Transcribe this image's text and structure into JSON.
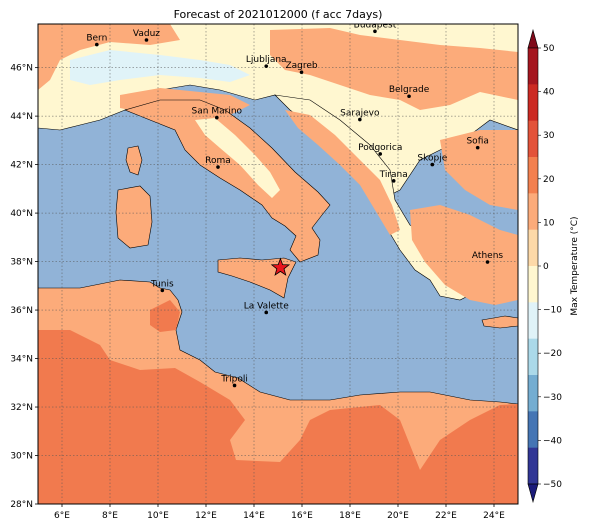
{
  "title": "Forecast of 2021012000 (f acc 7days)",
  "colorbar": {
    "label": "Max Temperature (°C)",
    "ticks": [
      "50",
      "40",
      "30",
      "20",
      "10",
      "0",
      "−10",
      "−20",
      "−30",
      "−40",
      "−50"
    ],
    "colors": [
      "#7f0a1a",
      "#a5161f",
      "#cc2a23",
      "#e3533a",
      "#f3804f",
      "#fcab7a",
      "#fdd9a8",
      "#fff7d0",
      "#e0f3f8",
      "#abd9e9",
      "#74add1",
      "#4575b4",
      "#313695",
      "#1b1b7a"
    ]
  },
  "axes": {
    "lat_labels": [
      "46°N",
      "44°N",
      "42°N",
      "40°N",
      "38°N",
      "36°N",
      "34°N",
      "32°N",
      "30°N",
      "28°N"
    ],
    "lon_labels": [
      "6°E",
      "8°E",
      "10°E",
      "12°E",
      "14°E",
      "16°E",
      "18°E",
      "20°E",
      "22°E",
      "24°E"
    ]
  },
  "cities": [
    {
      "name": "Bern",
      "lon": 7.45,
      "lat": 46.95
    },
    {
      "name": "Vaduz",
      "lon": 9.52,
      "lat": 47.14
    },
    {
      "name": "Budapest",
      "lon": 19.04,
      "lat": 47.5
    },
    {
      "name": "Ljubljana",
      "lon": 14.51,
      "lat": 46.06
    },
    {
      "name": "Zagreb",
      "lon": 15.98,
      "lat": 45.81
    },
    {
      "name": "Belgrade",
      "lon": 20.46,
      "lat": 44.82
    },
    {
      "name": "San Marino",
      "lon": 12.45,
      "lat": 43.94
    },
    {
      "name": "Sarajevo",
      "lon": 18.41,
      "lat": 43.86
    },
    {
      "name": "Sofia",
      "lon": 23.32,
      "lat": 42.7
    },
    {
      "name": "Podgorica",
      "lon": 19.26,
      "lat": 42.44
    },
    {
      "name": "Skopje",
      "lon": 21.43,
      "lat": 42.0
    },
    {
      "name": "Roma",
      "lon": 12.5,
      "lat": 41.9
    },
    {
      "name": "Tirana",
      "lon": 19.82,
      "lat": 41.33
    },
    {
      "name": "Athens",
      "lon": 23.73,
      "lat": 37.98
    },
    {
      "name": "Tunis",
      "lon": 10.18,
      "lat": 36.81
    },
    {
      "name": "La Valette",
      "lon": 14.51,
      "lat": 35.9
    },
    {
      "name": "Tripoli",
      "lon": 13.19,
      "lat": 32.89
    }
  ],
  "marker": {
    "type": "star",
    "lon": 15.1,
    "lat": 37.75,
    "color": "#e8141c"
  },
  "sea_color": "#91b3d7"
}
